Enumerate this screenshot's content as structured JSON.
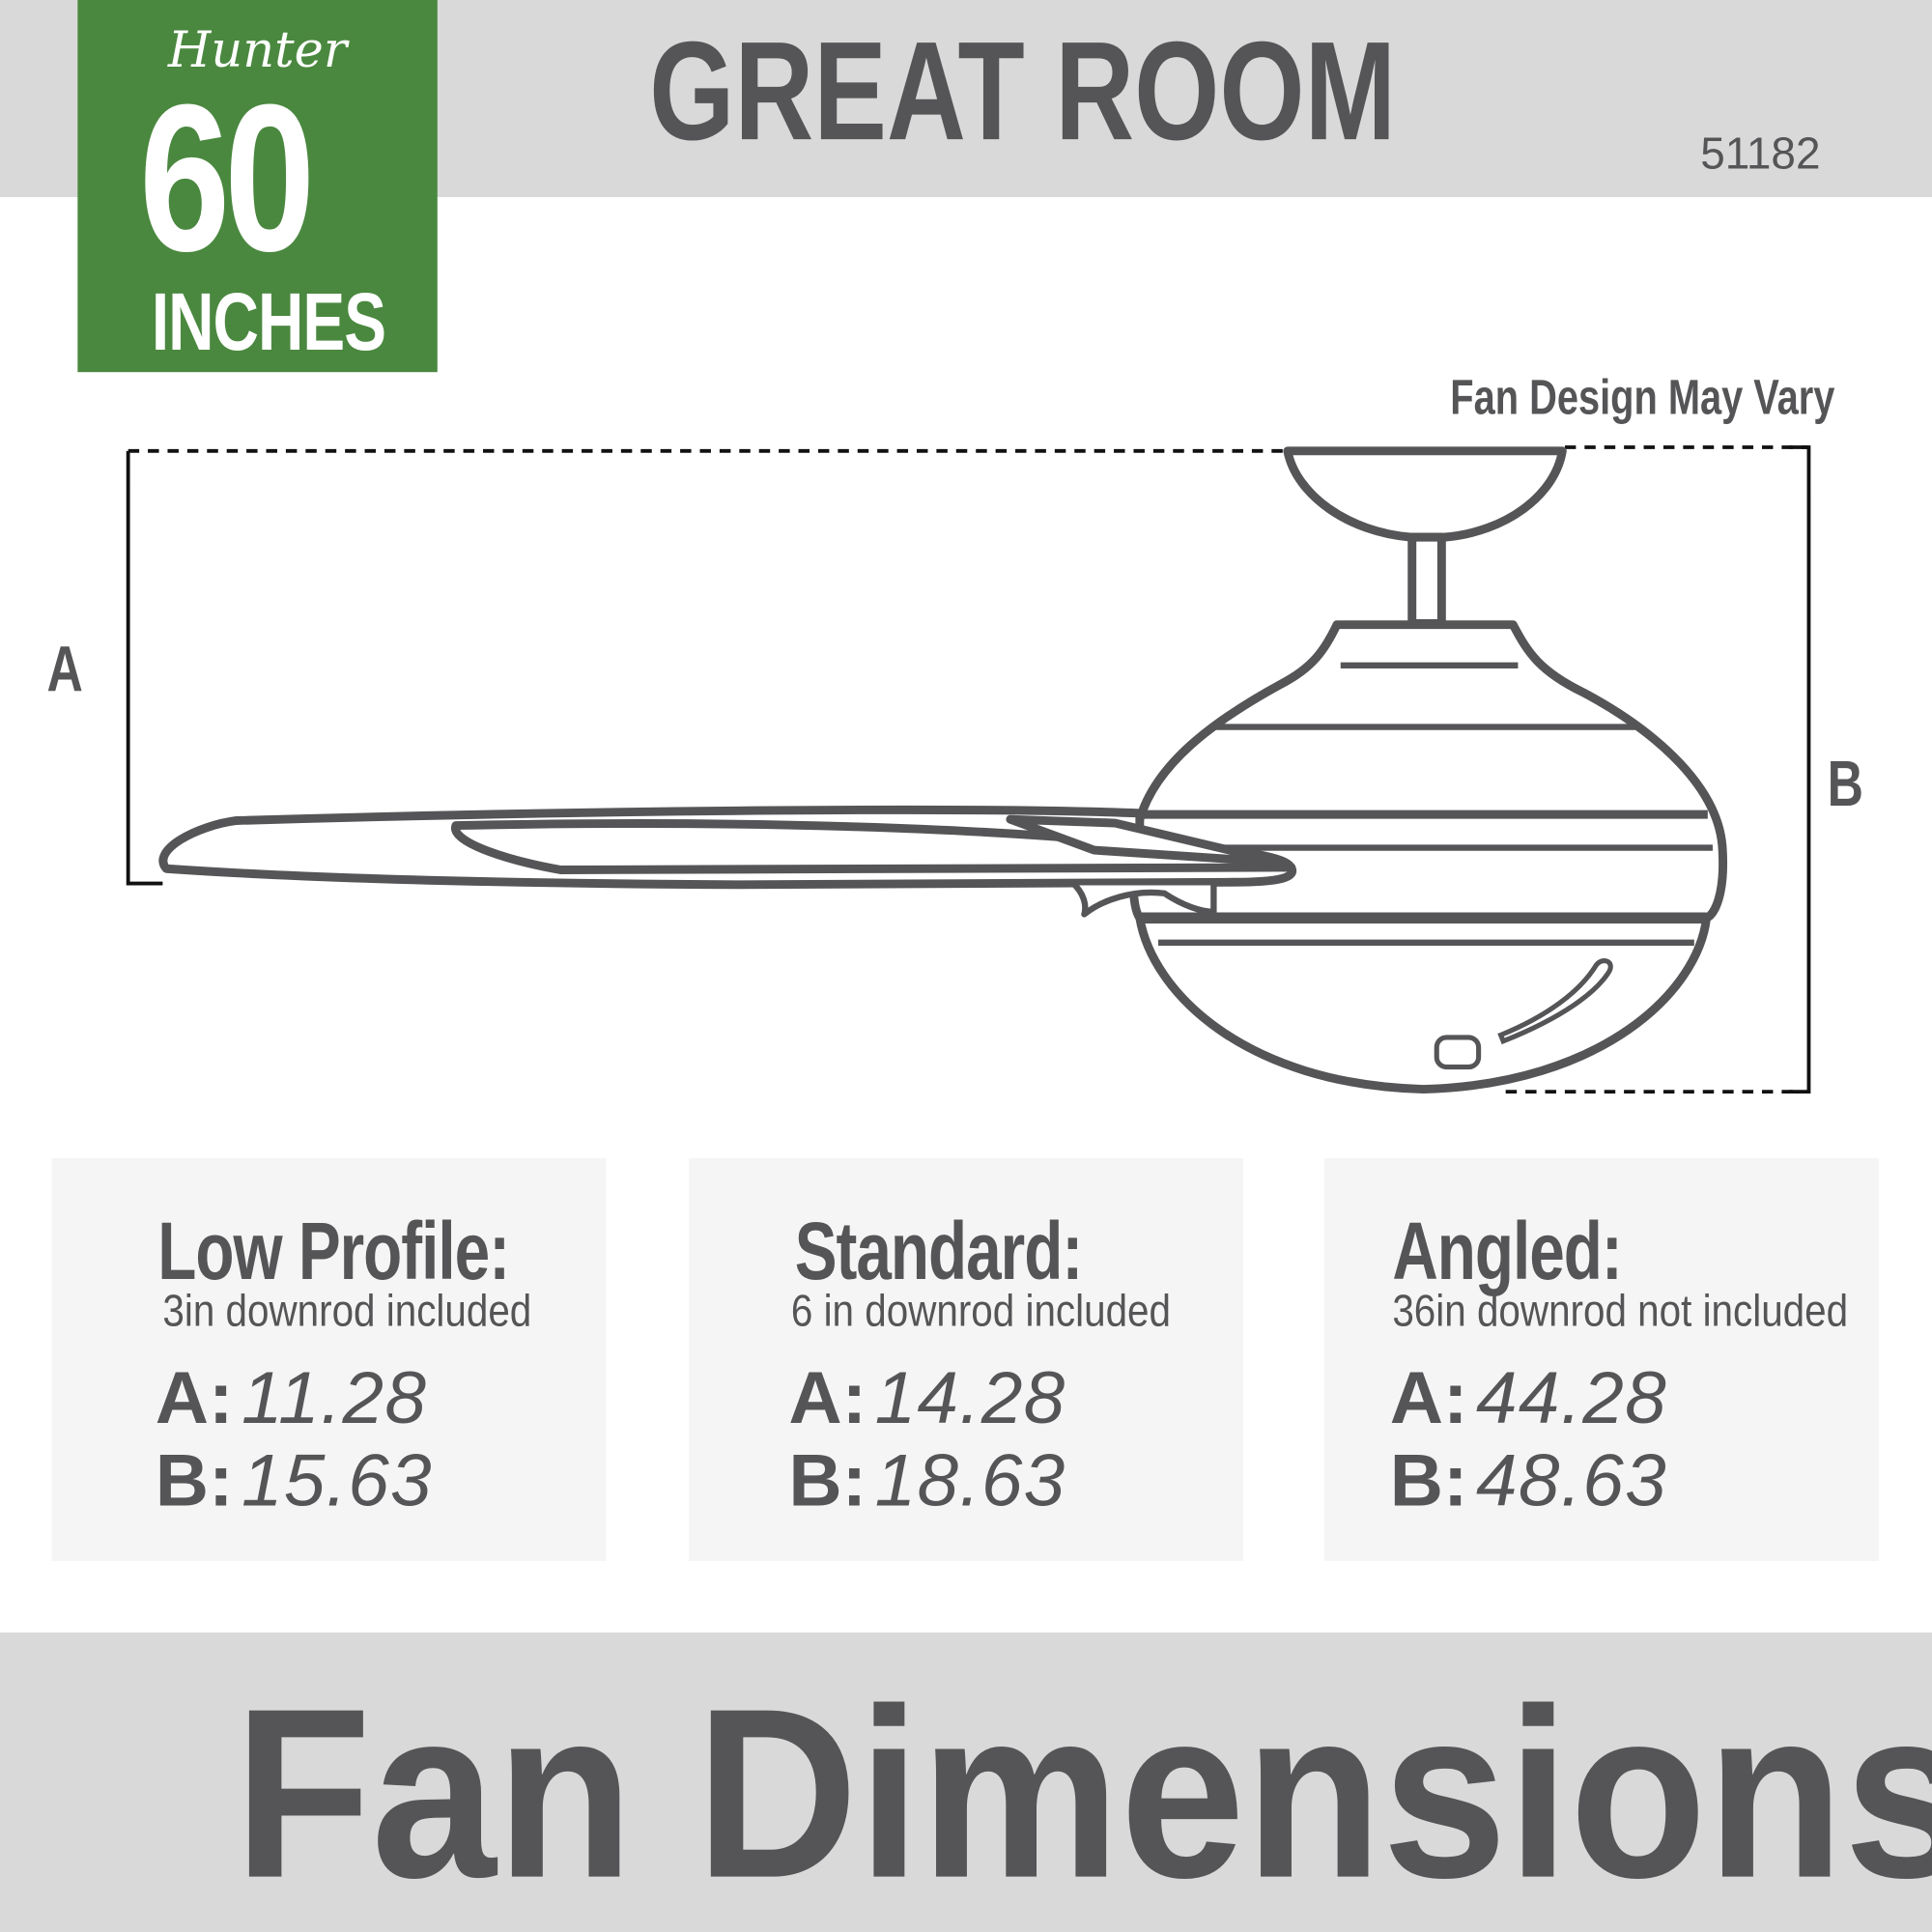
{
  "logo": {
    "brand": "Hunter",
    "size_number": "60",
    "size_unit": "INCHES"
  },
  "header": {
    "title": "GREAT ROOM",
    "model": "51182"
  },
  "diagram": {
    "note": "Fan Design May Vary",
    "label_a": "A",
    "label_b": "B"
  },
  "options": [
    {
      "title": "Low Profile:",
      "subtitle": "3in downrod included",
      "a_label": "A:",
      "a_value": "11.28",
      "b_label": "B:",
      "b_value": "15.63"
    },
    {
      "title": "Standard:",
      "subtitle": "6 in downrod included",
      "a_label": "A:",
      "a_value": "14.28",
      "b_label": "B:",
      "b_value": "18.63"
    },
    {
      "title": "Angled:",
      "subtitle": "36in downrod not included",
      "a_label": "A:",
      "a_value": "44.28",
      "b_label": "B:",
      "b_value": "48.63"
    }
  ],
  "footer": {
    "title": "Fan Dimensions"
  },
  "colors": {
    "brand_green": "#4a883f",
    "band_gray": "#d9d9d9",
    "text_gray": "#555557",
    "panel": "#f5f5f5"
  }
}
